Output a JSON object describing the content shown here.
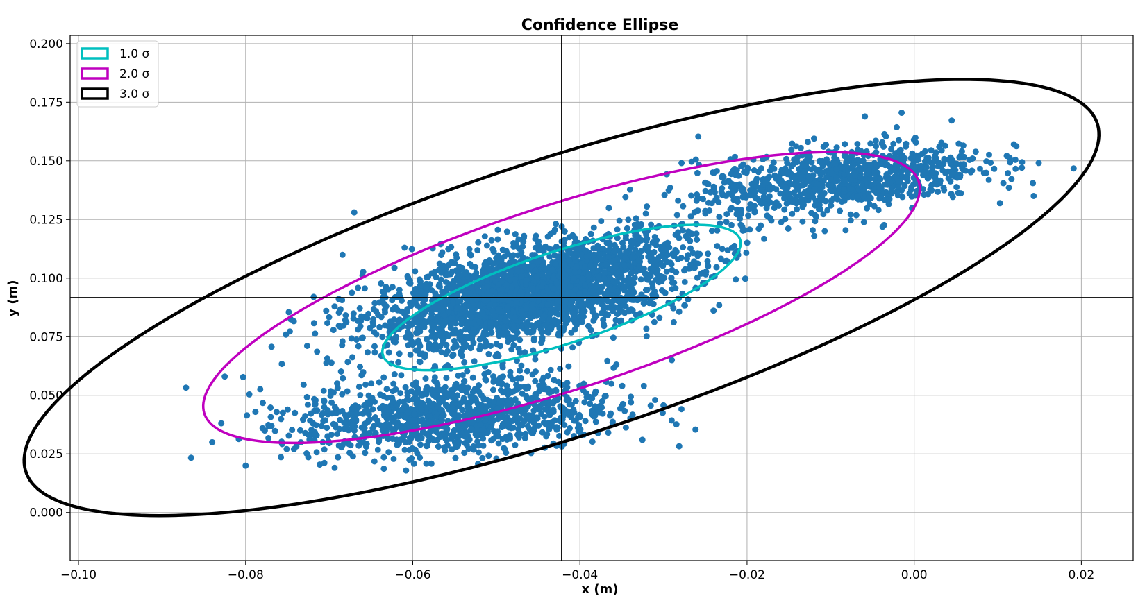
{
  "chart_data": {
    "type": "scatter",
    "title": "Confidence Ellipse",
    "xlabel": "x (m)",
    "ylabel": "y (m)",
    "xlim": [
      -0.101,
      0.0262
    ],
    "ylim": [
      -0.0205,
      0.2035
    ],
    "xticks": [
      -0.1,
      -0.08,
      -0.06,
      -0.04,
      -0.02,
      0.0,
      0.02
    ],
    "xtick_labels": [
      "−0.10",
      "−0.08",
      "−0.06",
      "−0.04",
      "−0.02",
      "0.00",
      "0.02"
    ],
    "yticks": [
      0.0,
      0.025,
      0.05,
      0.075,
      0.1,
      0.125,
      0.15,
      0.175,
      0.2
    ],
    "ytick_labels": [
      "0.000",
      "0.025",
      "0.050",
      "0.075",
      "0.100",
      "0.125",
      "0.150",
      "0.175",
      "0.200"
    ],
    "grid": true,
    "legend_position": "top-left",
    "mean": {
      "x": -0.0422,
      "y": 0.0917
    },
    "point_color": "#1f77b4",
    "scatter_clusters": [
      {
        "cx": -0.046,
        "cy": 0.0935,
        "sx": 0.0095,
        "sy": 0.012,
        "rho": 0.55,
        "n": 2600
      },
      {
        "cx": -0.055,
        "cy": 0.0415,
        "sx": 0.0095,
        "sy": 0.0085,
        "rho": 0.2,
        "n": 1100
      },
      {
        "cx": -0.009,
        "cy": 0.142,
        "sx": 0.0085,
        "sy": 0.008,
        "rho": 0.45,
        "n": 900
      }
    ],
    "outlier_points": [
      {
        "x": -0.084,
        "y": 0.03
      },
      {
        "x": -0.08,
        "y": 0.02
      },
      {
        "x": -0.0825,
        "y": 0.058
      },
      {
        "x": -0.0803,
        "y": 0.0578
      },
      {
        "x": 0.0142,
        "y": 0.1405
      },
      {
        "x": 0.0143,
        "y": 0.135
      },
      {
        "x": -0.0015,
        "y": 0.1705
      },
      {
        "x": -0.067,
        "y": 0.128
      },
      {
        "x": -0.029,
        "y": 0.065
      },
      {
        "x": -0.031,
        "y": 0.048
      }
    ],
    "ellipses": [
      {
        "name": "1.0 σ",
        "color": "#00bfbf",
        "cx": -0.0422,
        "cy": 0.0917,
        "a": 0.0356,
        "b": 0.0124,
        "angle_deg": 58.4
      },
      {
        "name": "2.0 σ",
        "color": "#bf00bf",
        "cx": -0.0422,
        "cy": 0.0917,
        "a": 0.0712,
        "b": 0.0248,
        "angle_deg": 58.4
      },
      {
        "name": "3.0 σ",
        "color": "#000000",
        "cx": -0.0422,
        "cy": 0.0917,
        "a": 0.1068,
        "b": 0.0372,
        "angle_deg": 58.4
      }
    ]
  },
  "legend": {
    "items": [
      {
        "label": "1.0 σ",
        "color": "#00bfbf"
      },
      {
        "label": "2.0 σ",
        "color": "#bf00bf"
      },
      {
        "label": "3.0 σ",
        "color": "#000000"
      }
    ]
  }
}
